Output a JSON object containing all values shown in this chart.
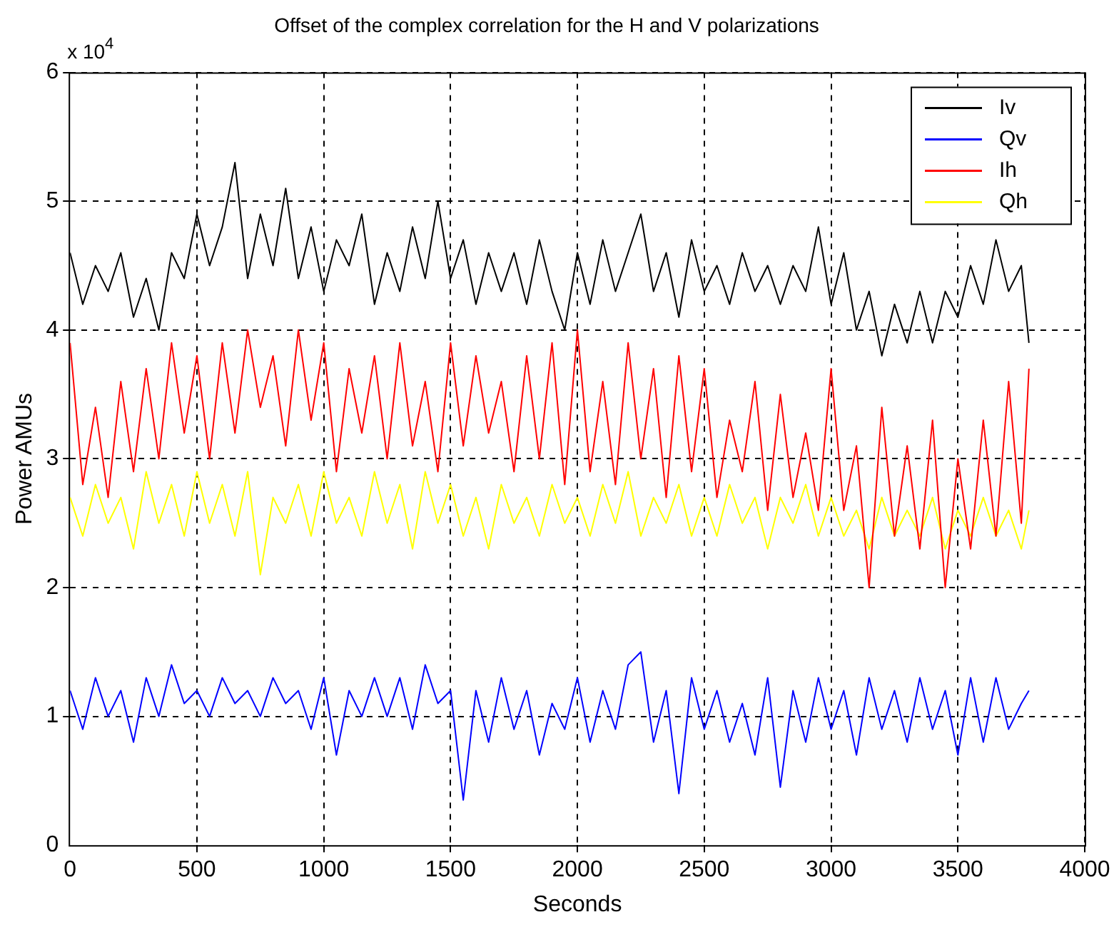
{
  "chart_data": {
    "type": "line",
    "title": "Offset of the complex correlation for the H and V polarizations",
    "xlabel": "Seconds",
    "ylabel": "Power AMUs",
    "annotations": [
      "x 10$^{4}$"
    ],
    "x": [
      0,
      50,
      100,
      150,
      200,
      250,
      300,
      350,
      400,
      450,
      500,
      550,
      600,
      650,
      700,
      750,
      800,
      850,
      900,
      950,
      1000,
      1050,
      1100,
      1150,
      1200,
      1250,
      1300,
      1350,
      1400,
      1450,
      1500,
      1550,
      1600,
      1650,
      1700,
      1750,
      1800,
      1850,
      1900,
      1950,
      2000,
      2050,
      2100,
      2150,
      2200,
      2250,
      2300,
      2350,
      2400,
      2450,
      2500,
      2550,
      2600,
      2650,
      2700,
      2750,
      2800,
      2850,
      2900,
      2950,
      3000,
      3050,
      3100,
      3150,
      3200,
      3250,
      3300,
      3350,
      3400,
      3450,
      3500,
      3550,
      3600,
      3650,
      3700,
      3750,
      3780
    ],
    "series": [
      {
        "name": "Iv",
        "color": "#000000",
        "values": [
          4.6,
          4.2,
          4.5,
          4.3,
          4.6,
          4.1,
          4.4,
          4.0,
          4.6,
          4.4,
          4.9,
          4.5,
          4.8,
          5.3,
          4.4,
          4.9,
          4.5,
          5.1,
          4.4,
          4.8,
          4.3,
          4.7,
          4.5,
          4.9,
          4.2,
          4.6,
          4.3,
          4.8,
          4.4,
          5.0,
          4.4,
          4.7,
          4.2,
          4.6,
          4.3,
          4.6,
          4.2,
          4.7,
          4.3,
          4.0,
          4.6,
          4.2,
          4.7,
          4.3,
          4.6,
          4.9,
          4.3,
          4.6,
          4.1,
          4.7,
          4.3,
          4.5,
          4.2,
          4.6,
          4.3,
          4.5,
          4.2,
          4.5,
          4.3,
          4.8,
          4.2,
          4.6,
          4.0,
          4.3,
          3.8,
          4.2,
          3.9,
          4.3,
          3.9,
          4.3,
          4.1,
          4.5,
          4.2,
          4.7,
          4.3,
          4.5,
          3.9
        ]
      },
      {
        "name": "Qv",
        "color": "#0000ff",
        "values": [
          1.2,
          0.9,
          1.3,
          1.0,
          1.2,
          0.8,
          1.3,
          1.0,
          1.4,
          1.1,
          1.2,
          1.0,
          1.3,
          1.1,
          1.2,
          1.0,
          1.3,
          1.1,
          1.2,
          0.9,
          1.3,
          0.7,
          1.2,
          1.0,
          1.3,
          1.0,
          1.3,
          0.9,
          1.4,
          1.1,
          1.2,
          0.35,
          1.2,
          0.8,
          1.3,
          0.9,
          1.2,
          0.7,
          1.1,
          0.9,
          1.3,
          0.8,
          1.2,
          0.9,
          1.4,
          1.5,
          0.8,
          1.2,
          0.4,
          1.3,
          0.9,
          1.2,
          0.8,
          1.1,
          0.7,
          1.3,
          0.45,
          1.2,
          0.8,
          1.3,
          0.9,
          1.2,
          0.7,
          1.3,
          0.9,
          1.2,
          0.8,
          1.3,
          0.9,
          1.2,
          0.7,
          1.3,
          0.8,
          1.3,
          0.9,
          1.1,
          1.2
        ]
      },
      {
        "name": "Ih",
        "color": "#ff0000",
        "values": [
          3.9,
          2.8,
          3.4,
          2.7,
          3.6,
          2.9,
          3.7,
          3.0,
          3.9,
          3.2,
          3.8,
          3.0,
          3.9,
          3.2,
          4.0,
          3.4,
          3.8,
          3.1,
          4.0,
          3.3,
          3.9,
          2.9,
          3.7,
          3.2,
          3.8,
          3.0,
          3.9,
          3.1,
          3.6,
          2.9,
          3.9,
          3.1,
          3.8,
          3.2,
          3.6,
          2.9,
          3.8,
          3.0,
          3.9,
          2.8,
          4.0,
          2.9,
          3.6,
          2.8,
          3.9,
          3.0,
          3.7,
          2.7,
          3.8,
          2.9,
          3.7,
          2.7,
          3.3,
          2.9,
          3.6,
          2.6,
          3.5,
          2.7,
          3.2,
          2.6,
          3.7,
          2.6,
          3.1,
          2.0,
          3.4,
          2.4,
          3.1,
          2.3,
          3.3,
          2.0,
          3.0,
          2.3,
          3.3,
          2.4,
          3.6,
          2.5,
          3.7
        ]
      },
      {
        "name": "Qh",
        "color": "#ffff00",
        "values": [
          2.7,
          2.4,
          2.8,
          2.5,
          2.7,
          2.3,
          2.9,
          2.5,
          2.8,
          2.4,
          2.9,
          2.5,
          2.8,
          2.4,
          2.9,
          2.1,
          2.7,
          2.5,
          2.8,
          2.4,
          2.9,
          2.5,
          2.7,
          2.4,
          2.9,
          2.5,
          2.8,
          2.3,
          2.9,
          2.5,
          2.8,
          2.4,
          2.7,
          2.3,
          2.8,
          2.5,
          2.7,
          2.4,
          2.8,
          2.5,
          2.7,
          2.4,
          2.8,
          2.5,
          2.9,
          2.4,
          2.7,
          2.5,
          2.8,
          2.4,
          2.7,
          2.4,
          2.8,
          2.5,
          2.7,
          2.3,
          2.7,
          2.5,
          2.8,
          2.4,
          2.7,
          2.4,
          2.6,
          2.3,
          2.7,
          2.4,
          2.6,
          2.4,
          2.7,
          2.3,
          2.6,
          2.4,
          2.7,
          2.4,
          2.6,
          2.3,
          2.6
        ]
      }
    ],
    "xlim": [
      0,
      4000
    ],
    "xticks": [
      0,
      500,
      1000,
      1500,
      2000,
      2500,
      3000,
      3500,
      4000
    ],
    "ylim": [
      0,
      6
    ],
    "yticks": [
      0,
      1,
      2,
      3,
      4,
      5,
      6
    ],
    "grid": true,
    "legend": "top right",
    "marker": "none",
    "line_style": "solid"
  }
}
